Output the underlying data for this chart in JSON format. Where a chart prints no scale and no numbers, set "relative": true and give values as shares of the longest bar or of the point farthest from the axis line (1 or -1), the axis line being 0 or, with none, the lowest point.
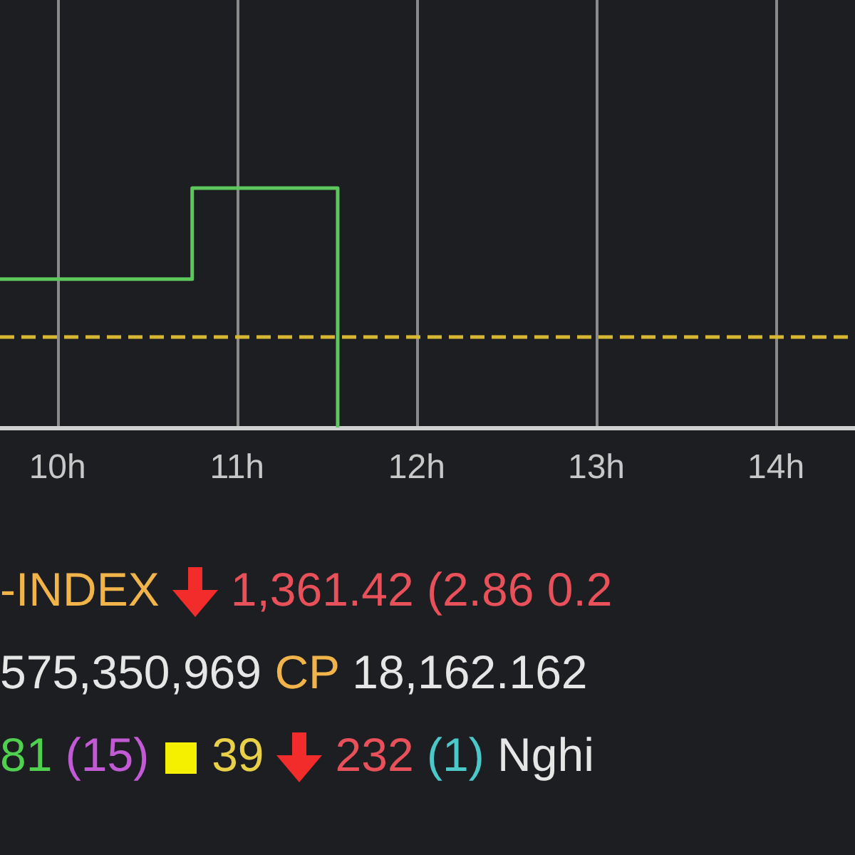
{
  "chart_data": {
    "type": "step",
    "relative": true,
    "x": [
      9.68,
      10.75,
      11.56
    ],
    "series": [
      {
        "color": "#5cc85c",
        "values": [
          0.62,
          1,
          0
        ]
      }
    ],
    "xlim": [
      9.68,
      14.44
    ],
    "xticks": [
      {
        "value": 10,
        "label": "10h"
      },
      {
        "value": 11,
        "label": "11h"
      },
      {
        "value": 12,
        "label": "12h"
      },
      {
        "value": 13,
        "label": "13h"
      },
      {
        "value": 14,
        "label": "14h"
      }
    ],
    "grid": "x",
    "marker": "none",
    "line_style": "solid",
    "ref_lines": [
      {
        "axis": "y",
        "value": 0.38,
        "color": "#d8b832",
        "line_style": "dashed"
      }
    ],
    "annotations": [
      "-INDEX",
      "1,361.42 (2.86 0.2",
      "575,350,969",
      "CP",
      "18,162.162",
      "81",
      "(15)",
      "39",
      "232",
      "(1)",
      "Nghi"
    ]
  }
}
